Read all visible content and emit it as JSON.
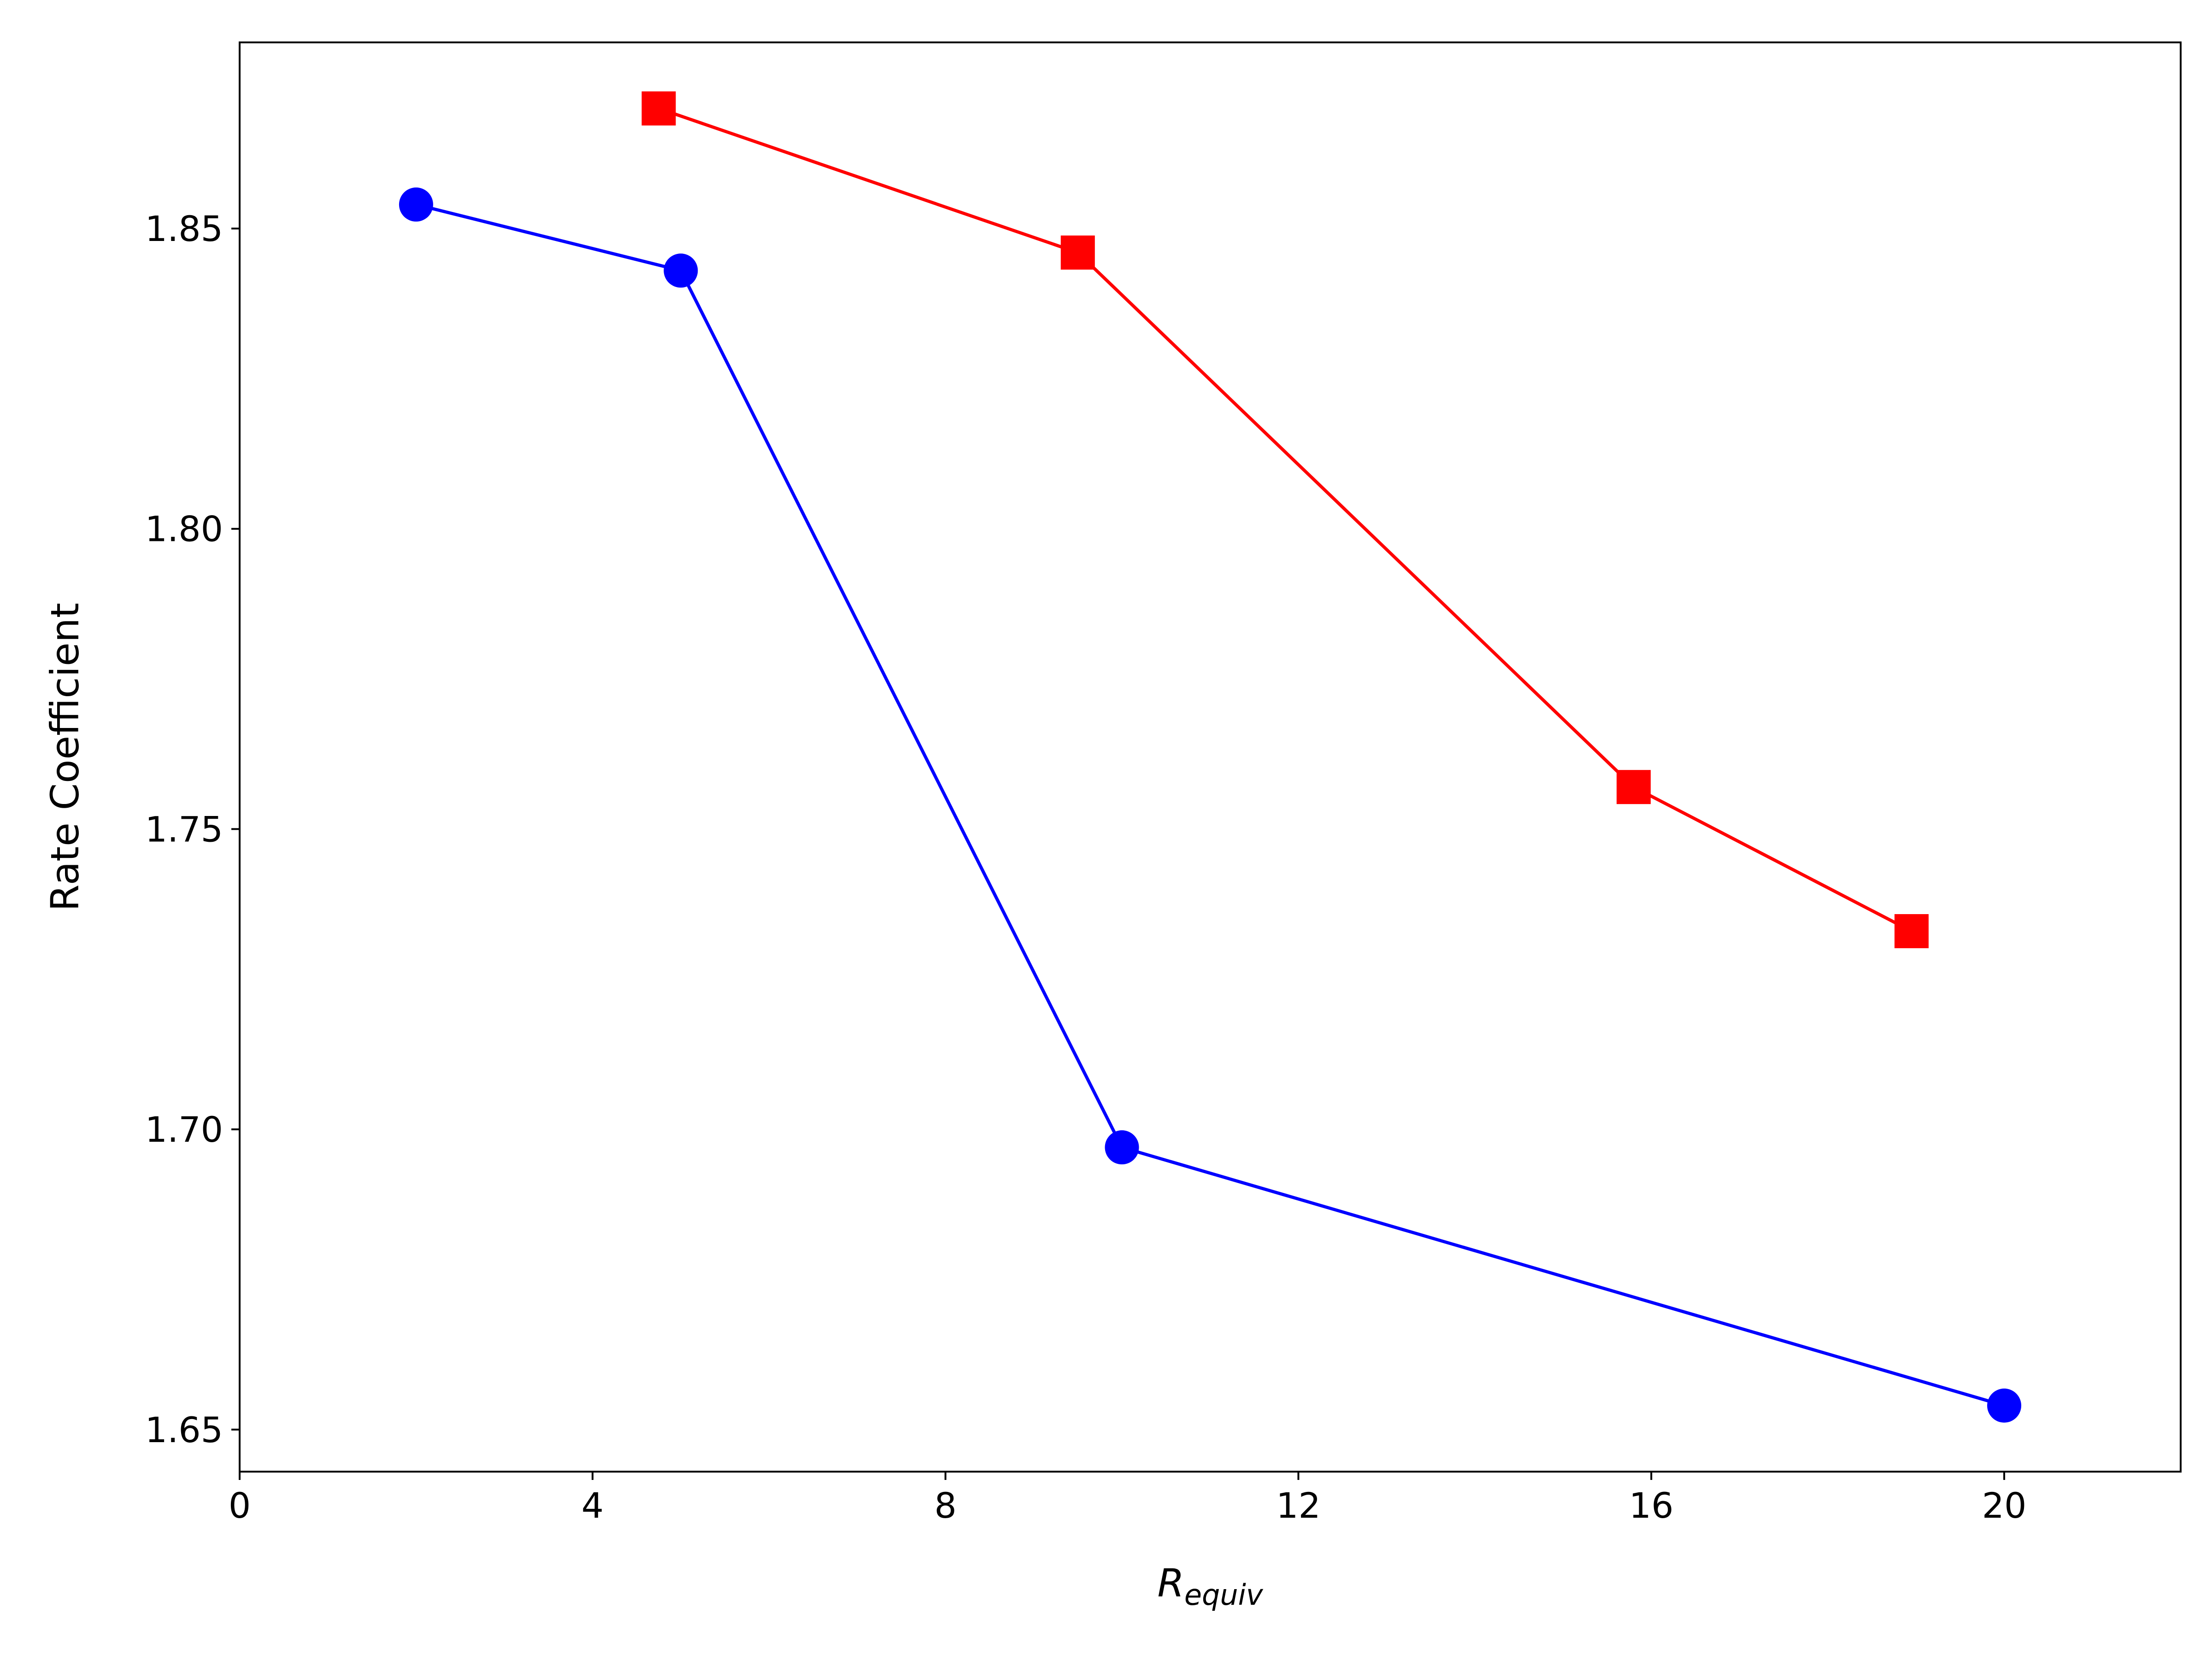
{
  "chart_data": {
    "type": "line",
    "title": "",
    "xlabel_main": "R",
    "xlabel_sub": "equiv",
    "ylabel": "Rate Coefficient",
    "xlim": [
      0,
      22
    ],
    "ylim": [
      1.643,
      1.881
    ],
    "xticks": [
      0,
      4,
      8,
      12,
      16,
      20
    ],
    "xtick_labels": [
      "0",
      "4",
      "8",
      "12",
      "16",
      "20"
    ],
    "yticks": [
      1.65,
      1.7,
      1.75,
      1.8,
      1.85
    ],
    "ytick_labels": [
      "1.65",
      "1.70",
      "1.75",
      "1.80",
      "1.85"
    ],
    "grid": false,
    "series": [
      {
        "color": "#0000ff",
        "marker": "circle",
        "points": [
          {
            "x": 2.0,
            "y": 1.854
          },
          {
            "x": 5.0,
            "y": 1.843
          },
          {
            "x": 10.0,
            "y": 1.697
          },
          {
            "x": 20.0,
            "y": 1.654
          }
        ]
      },
      {
        "color": "#ff0000",
        "marker": "square",
        "points": [
          {
            "x": 4.75,
            "y": 1.87
          },
          {
            "x": 9.5,
            "y": 1.846
          },
          {
            "x": 15.8,
            "y": 1.757
          },
          {
            "x": 18.95,
            "y": 1.733
          }
        ]
      }
    ]
  }
}
